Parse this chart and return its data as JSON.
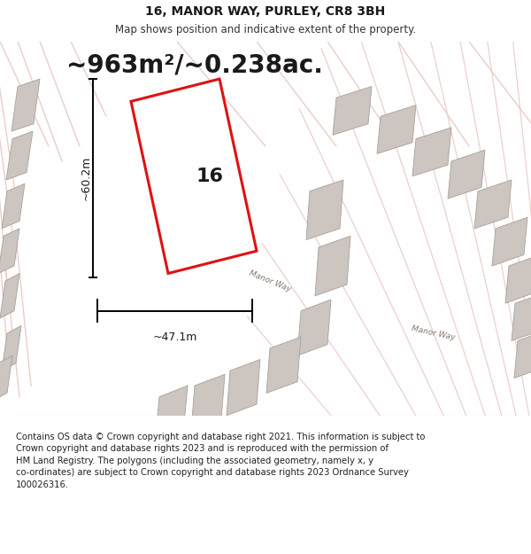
{
  "title": "16, MANOR WAY, PURLEY, CR8 3BH",
  "subtitle": "Map shows position and indicative extent of the property.",
  "area_text": "~963m²/~0.238ac.",
  "label_16": "16",
  "dim_width": "~47.1m",
  "dim_height": "~60.2m",
  "road_label1": "Manor Way",
  "road_label2": "Manor Way",
  "footer": "Contains OS data © Crown copyright and database right 2021. This information is subject to\nCrown copyright and database rights 2023 and is reproduced with the permission of\nHM Land Registry. The polygons (including the associated geometry, namely x, y\nco-ordinates) are subject to Crown copyright and database rights 2023 Ordnance Survey\n100026316.",
  "bg_color": "#f2eeec",
  "map_bg": "#ede8e5",
  "plot_color": "#dd0000",
  "building_color": "#ccc5c0",
  "road_line_color": "#e8c8c4",
  "title_fontsize": 10,
  "subtitle_fontsize": 8.5,
  "area_fontsize": 20,
  "label_fontsize": 16,
  "dim_fontsize": 9,
  "footer_fontsize": 7.2
}
